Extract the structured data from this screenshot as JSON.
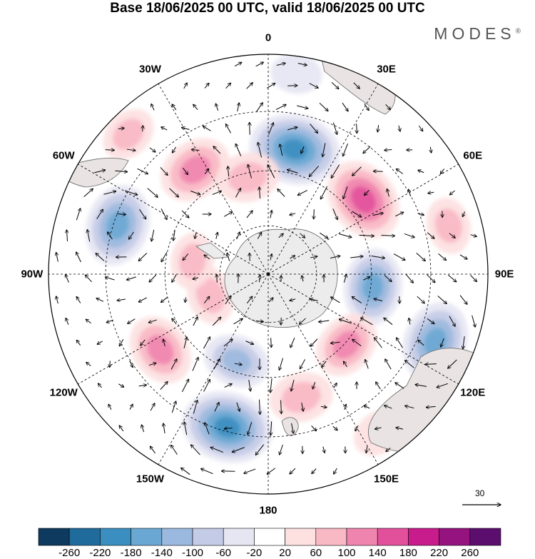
{
  "title": "Base 18/06/2025 00 UTC, valid 18/06/2025 00 UTC",
  "brand": "MODES",
  "brand_mark": "®",
  "longitude_labels": [
    {
      "text": "0",
      "lon": 0
    },
    {
      "text": "30E",
      "lon": 30
    },
    {
      "text": "60E",
      "lon": 60
    },
    {
      "text": "90E",
      "lon": 90
    },
    {
      "text": "120E",
      "lon": 120
    },
    {
      "text": "150E",
      "lon": 150
    },
    {
      "text": "180",
      "lon": 180
    },
    {
      "text": "150W",
      "lon": -150
    },
    {
      "text": "120W",
      "lon": -120
    },
    {
      "text": "90W",
      "lon": -90
    },
    {
      "text": "60W",
      "lon": -60
    },
    {
      "text": "30W",
      "lon": -30
    }
  ],
  "reference_vector": {
    "label": "30"
  },
  "colorbar": {
    "colors": [
      "#0d3a5e",
      "#1f6c9c",
      "#3b8ec0",
      "#6aa8d3",
      "#9bb9de",
      "#c4cbe6",
      "#e6e6f3",
      "#ffffff",
      "#fde0e0",
      "#f8b8c4",
      "#ef85ae",
      "#e2509c",
      "#c81c8c",
      "#94137f",
      "#5c0e6e"
    ],
    "labels": [
      "-260",
      "-220",
      "-180",
      "-140",
      "-100",
      "-60",
      "-20",
      "20",
      "60",
      "100",
      "140",
      "180",
      "220",
      "260"
    ]
  },
  "anomaly_centers": [
    {
      "lon": 12,
      "r": 0.58,
      "value": -200
    },
    {
      "lon": 52,
      "r": 0.55,
      "value": 170
    },
    {
      "lon": 97,
      "r": 0.48,
      "value": -140
    },
    {
      "lon": 112,
      "r": 0.82,
      "value": -160
    },
    {
      "lon": 132,
      "r": 0.48,
      "value": 110
    },
    {
      "lon": 165,
      "r": 0.58,
      "value": 90
    },
    {
      "lon": -165,
      "r": 0.72,
      "value": -200
    },
    {
      "lon": -160,
      "r": 0.42,
      "value": -100
    },
    {
      "lon": -125,
      "r": 0.6,
      "value": 120
    },
    {
      "lon": -110,
      "r": 0.28,
      "value": 70
    },
    {
      "lon": -72,
      "r": 0.72,
      "value": -160
    },
    {
      "lon": -80,
      "r": 0.35,
      "value": 60
    },
    {
      "lon": -35,
      "r": 0.58,
      "value": 130
    },
    {
      "lon": -12,
      "r": 0.45,
      "value": 90
    },
    {
      "lon": 8,
      "r": 0.92,
      "value": -40
    },
    {
      "lon": 75,
      "r": 0.85,
      "value": 60
    },
    {
      "lon": -45,
      "r": 0.9,
      "value": 60
    },
    {
      "lon": 145,
      "r": 0.88,
      "value": 50
    }
  ]
}
